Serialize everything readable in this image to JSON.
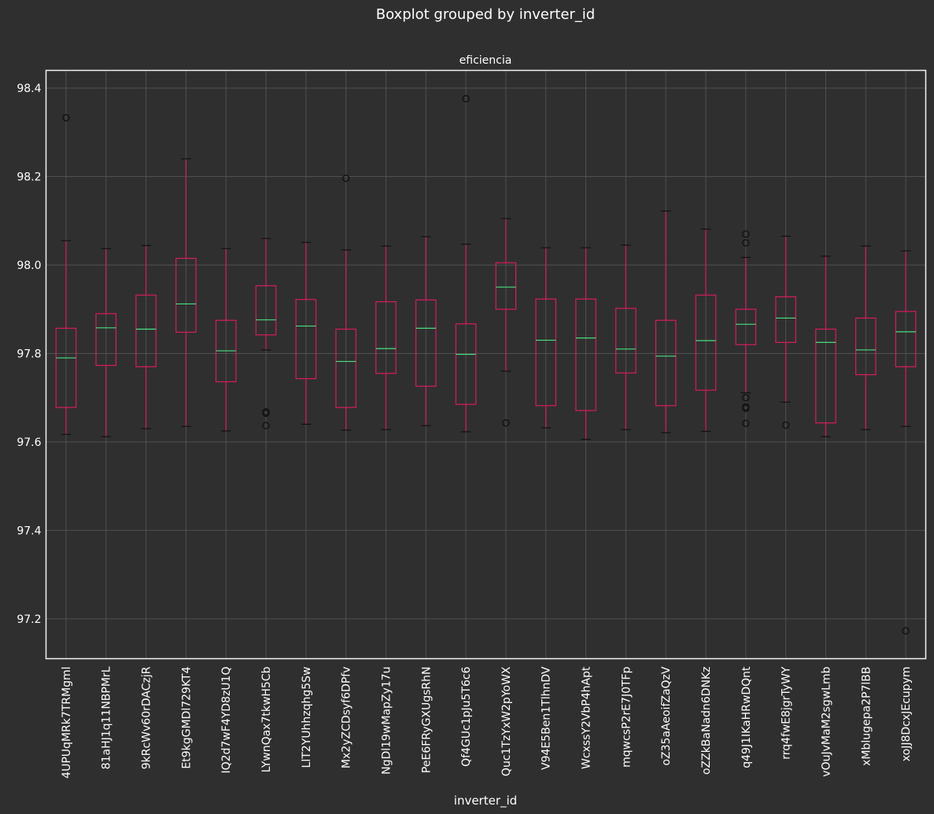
{
  "chart_data": {
    "type": "boxplot",
    "title": "Boxplot grouped by inverter_id",
    "subtitle": "eficiencia",
    "xlabel": "inverter_id",
    "ylabel": "",
    "ylim": [
      97.11,
      98.44
    ],
    "yticks": [
      "97.2",
      "97.4",
      "97.6",
      "97.8",
      "98.0",
      "98.2",
      "98.4"
    ],
    "grid": true,
    "colors": {
      "background": "#2f2f2f",
      "box": "#d81b60",
      "median": "#4ade80",
      "grid": "#505050",
      "cap": "#111111",
      "frame": "#f2f2f2",
      "text": "#ffffff"
    },
    "categories": [
      "4UPUqMRk7TRMgml",
      "81aHJ1q11NBPMrL",
      "9kRcWv60rDACzjR",
      "Et9kgGMDl729KT4",
      "IQ2d7wF4YD8zU1Q",
      "LYwnQax7tkwH5Cb",
      "LlT2YUhhzqhg5Sw",
      "Mx2yZCDsyf6DPfv",
      "NgDl19wMapZy17u",
      "PeE6FRyGXUgsRhN",
      "Qf4GUc1pJu5T6c6",
      "Quc1TzYxW2pYoWX",
      "V94E5Ben1TlhnDV",
      "WcxssY2VbP4hApt",
      "mqwcsP2rE7J0TFp",
      "oZ35aAeoifZaQzV",
      "oZZkBaNadn6DNKz",
      "q49J1IKaHRwDQnt",
      "rrq4fwE8jgrTyWY",
      "vOuJvMaM2sgwLmb",
      "xMblugepa2P7lBB",
      "xoJJ8DcxJEcupym"
    ],
    "boxes": [
      {
        "whislo": 97.617,
        "q1": 97.678,
        "median": 97.79,
        "q3": 97.857,
        "whishi": 98.055,
        "fliers": [
          98.333
        ]
      },
      {
        "whislo": 97.612,
        "q1": 97.773,
        "median": 97.858,
        "q3": 97.89,
        "whishi": 98.037,
        "fliers": []
      },
      {
        "whislo": 97.63,
        "q1": 97.77,
        "median": 97.855,
        "q3": 97.932,
        "whishi": 98.044,
        "fliers": []
      },
      {
        "whislo": 97.635,
        "q1": 97.848,
        "median": 97.912,
        "q3": 98.015,
        "whishi": 98.24,
        "fliers": []
      },
      {
        "whislo": 97.625,
        "q1": 97.736,
        "median": 97.806,
        "q3": 97.875,
        "whishi": 98.037,
        "fliers": []
      },
      {
        "whislo": 97.808,
        "q1": 97.842,
        "median": 97.876,
        "q3": 97.953,
        "whishi": 98.06,
        "fliers": [
          97.668,
          97.665,
          97.637
        ]
      },
      {
        "whislo": 97.64,
        "q1": 97.743,
        "median": 97.862,
        "q3": 97.922,
        "whishi": 98.051,
        "fliers": []
      },
      {
        "whislo": 97.627,
        "q1": 97.678,
        "median": 97.782,
        "q3": 97.855,
        "whishi": 98.034,
        "fliers": [
          98.196
        ]
      },
      {
        "whislo": 97.628,
        "q1": 97.755,
        "median": 97.811,
        "q3": 97.917,
        "whishi": 98.043,
        "fliers": []
      },
      {
        "whislo": 97.637,
        "q1": 97.726,
        "median": 97.857,
        "q3": 97.921,
        "whishi": 98.064,
        "fliers": []
      },
      {
        "whislo": 97.623,
        "q1": 97.685,
        "median": 97.798,
        "q3": 97.867,
        "whishi": 98.047,
        "fliers": [
          98.376
        ]
      },
      {
        "whislo": 97.76,
        "q1": 97.9,
        "median": 97.95,
        "q3": 98.005,
        "whishi": 98.105,
        "fliers": [
          97.643
        ]
      },
      {
        "whislo": 97.632,
        "q1": 97.682,
        "median": 97.83,
        "q3": 97.923,
        "whishi": 98.039,
        "fliers": []
      },
      {
        "whislo": 97.606,
        "q1": 97.671,
        "median": 97.835,
        "q3": 97.923,
        "whishi": 98.039,
        "fliers": []
      },
      {
        "whislo": 97.628,
        "q1": 97.756,
        "median": 97.81,
        "q3": 97.902,
        "whishi": 98.045,
        "fliers": []
      },
      {
        "whislo": 97.621,
        "q1": 97.682,
        "median": 97.794,
        "q3": 97.875,
        "whishi": 98.122,
        "fliers": []
      },
      {
        "whislo": 97.624,
        "q1": 97.717,
        "median": 97.829,
        "q3": 97.932,
        "whishi": 98.081,
        "fliers": []
      },
      {
        "whislo": 97.711,
        "q1": 97.82,
        "median": 97.866,
        "q3": 97.9,
        "whishi": 98.017,
        "fliers": [
          98.07,
          98.05,
          97.7,
          97.679,
          97.676,
          97.642
        ]
      },
      {
        "whislo": 97.69,
        "q1": 97.825,
        "median": 97.88,
        "q3": 97.928,
        "whishi": 98.065,
        "fliers": [
          97.638
        ]
      },
      {
        "whislo": 97.612,
        "q1": 97.643,
        "median": 97.825,
        "q3": 97.855,
        "whishi": 98.02,
        "fliers": []
      },
      {
        "whislo": 97.628,
        "q1": 97.752,
        "median": 97.808,
        "q3": 97.88,
        "whishi": 98.043,
        "fliers": []
      },
      {
        "whislo": 97.635,
        "q1": 97.77,
        "median": 97.849,
        "q3": 97.895,
        "whishi": 98.032,
        "fliers": [
          97.173
        ]
      }
    ]
  }
}
